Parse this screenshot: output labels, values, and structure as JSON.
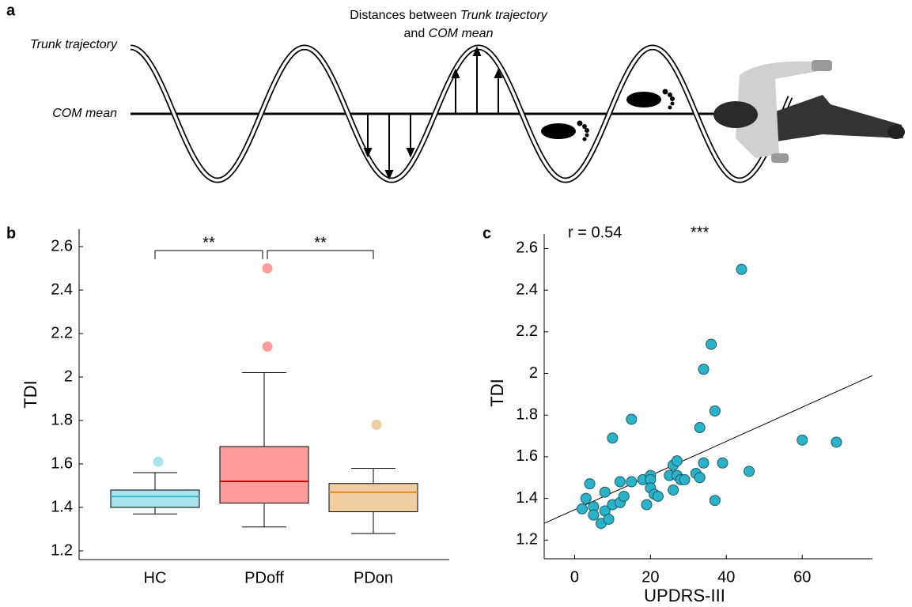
{
  "diagram": {
    "label": "a",
    "title_part1": "Distances between",
    "title_italic1": "Trunk trajectory",
    "title_part2": "and",
    "title_italic2": "COM mean",
    "trunk_label": "Trunk trajectory",
    "com_label": "COM mean"
  },
  "chart_data": [
    {
      "type": "box",
      "panel_label": "b",
      "y_label": "TDI",
      "categories": [
        "HC",
        "PDoff",
        "PDon"
      ],
      "boxes": [
        {
          "color": "#a8e4ec",
          "median_color": "#3bb5c8",
          "outlier_color": "#a8e4ec",
          "whisker_low": 1.37,
          "q1": 1.4,
          "median": 1.45,
          "q3": 1.48,
          "whisker_high": 1.56,
          "outliers": [
            1.61
          ]
        },
        {
          "color": "#ff9d9d",
          "median_color": "#e00000",
          "outlier_color": "#ff9d9d",
          "whisker_low": 1.31,
          "q1": 1.42,
          "median": 1.52,
          "q3": 1.68,
          "whisker_high": 2.02,
          "outliers": [
            2.14,
            2.5
          ]
        },
        {
          "color": "#f0cda0",
          "median_color": "#d98a2a",
          "outlier_color": "#f0cda0",
          "whisker_low": 1.28,
          "q1": 1.38,
          "median": 1.47,
          "q3": 1.51,
          "whisker_high": 1.58,
          "outliers": [
            1.78
          ]
        }
      ],
      "annotations": [
        {
          "text": "**",
          "between": [
            0,
            1
          ]
        },
        {
          "text": "**",
          "between": [
            1,
            2
          ]
        }
      ],
      "ylim": [
        1.16,
        2.68
      ],
      "yticks": [
        1.2,
        1.4,
        1.6,
        1.8,
        2,
        2.2,
        2.4,
        2.6
      ]
    },
    {
      "type": "scatter",
      "panel_label": "c",
      "x_label": "UPDRS-III",
      "y_label": "TDI",
      "annotations": [
        "r = 0.54",
        "***"
      ],
      "x": [
        2,
        3,
        4,
        5,
        5,
        7,
        8,
        8,
        9,
        10,
        10,
        12,
        12,
        13,
        15,
        15,
        18,
        19,
        20,
        20,
        20,
        21,
        22,
        25,
        26,
        26,
        27,
        27,
        28,
        29,
        32,
        33,
        33,
        34,
        34,
        36,
        37,
        37,
        39,
        44,
        46,
        60,
        69
      ],
      "series": [
        {
          "color": "#2ab3c8",
          "values": [
            1.35,
            1.4,
            1.47,
            1.36,
            1.32,
            1.28,
            1.34,
            1.43,
            1.3,
            1.37,
            1.69,
            1.38,
            1.48,
            1.41,
            1.48,
            1.78,
            1.49,
            1.37,
            1.51,
            1.49,
            1.45,
            1.42,
            1.41,
            1.51,
            1.56,
            1.44,
            1.58,
            1.51,
            1.49,
            1.49,
            1.52,
            1.5,
            1.74,
            1.57,
            2.02,
            2.14,
            1.82,
            1.39,
            1.57,
            2.5,
            1.53,
            1.68,
            1.67
          ]
        }
      ],
      "fit": {
        "x": [
          -8,
          78.5
        ],
        "y": [
          1.28,
          1.99
        ]
      },
      "xlim": [
        -8,
        78.5
      ],
      "xticks": [
        0,
        20,
        40,
        60
      ],
      "ylim": [
        1.11,
        2.67
      ],
      "yticks": [
        1.2,
        1.4,
        1.6,
        1.8,
        2,
        2.2,
        2.4,
        2.6
      ]
    }
  ]
}
